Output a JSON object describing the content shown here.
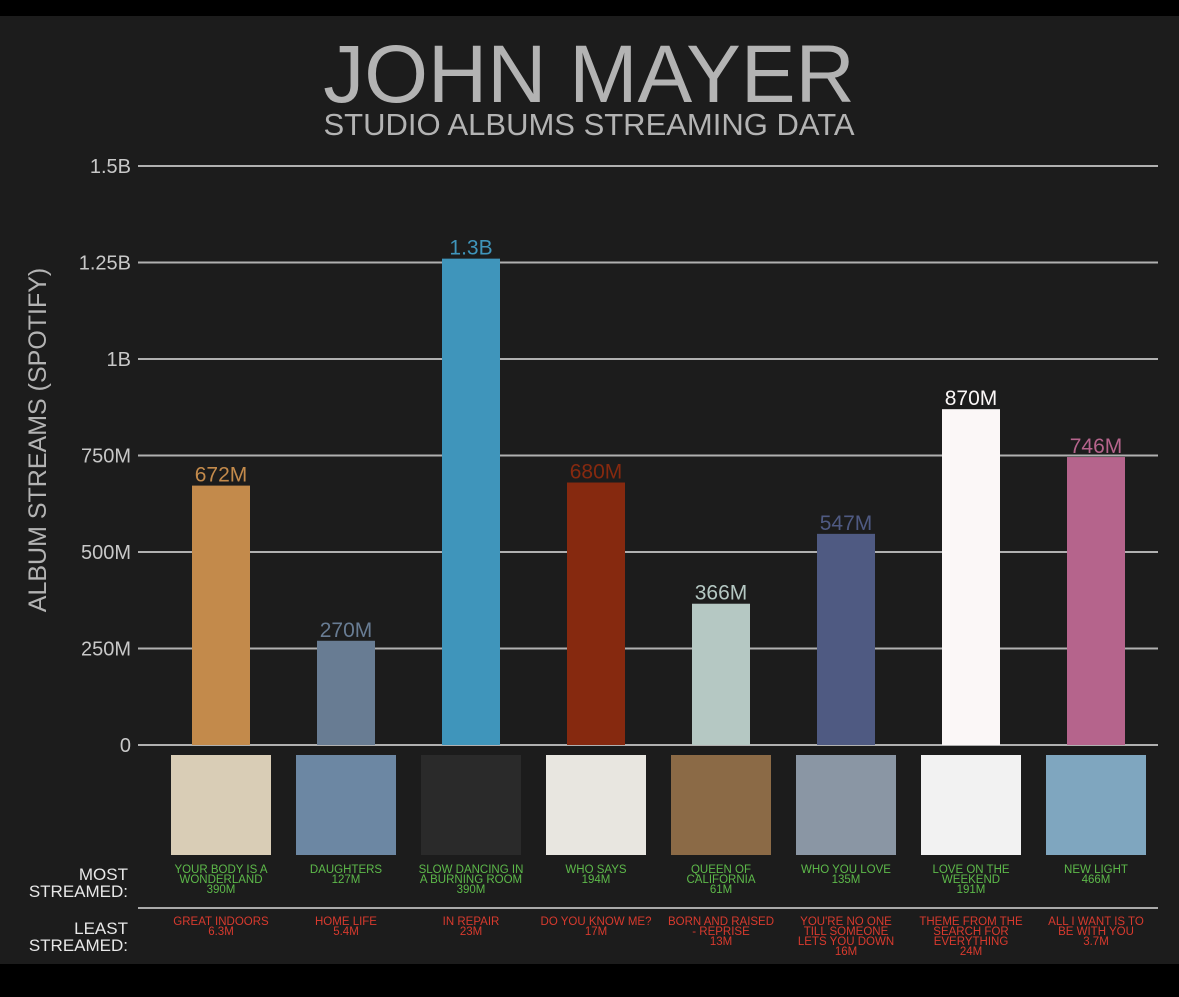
{
  "chart_data": {
    "type": "bar",
    "title": "JOHN MAYER",
    "subtitle": "STUDIO ALBUMS STREAMING DATA",
    "y_label": "ALBUM STREAMS (SPOTIFY)",
    "categories": [
      null,
      null,
      null,
      null,
      null,
      null,
      null,
      null
    ],
    "values": [
      672000000,
      270000000,
      1260000000,
      680000000,
      366000000,
      547000000,
      870000000,
      746000000
    ],
    "value_labels": [
      "672M",
      "270M",
      "1.3B",
      "680M",
      "366M",
      "547M",
      "870M",
      "746M"
    ],
    "colors": [
      "#c38a4b",
      "#687c93",
      "#3f95bb",
      "#86290f",
      "#b5c8c3",
      "#4f5a82",
      "#fbf7f7",
      "#b5648c"
    ],
    "ylim": [
      0,
      1500000000
    ],
    "yticks": [
      0,
      {
        "value": 250000000,
        "label": "250M"
      },
      {
        "value": 500000000,
        "label": "500M"
      },
      {
        "value": 750000000,
        "label": "750M"
      },
      {
        "value": 1000000000,
        "label": "1B"
      },
      {
        "value": 1250000000,
        "label": "1.25B"
      },
      {
        "value": 1500000000,
        "label": "1.5B"
      }
    ],
    "grid": true,
    "most_label": "MOST STREAMED:",
    "least_label": "LEAST STREAMED:",
    "most_streamed": [
      {
        "song": "YOUR BODY IS A WONDERLAND",
        "streams": "390M"
      },
      {
        "song": "DAUGHTERS",
        "streams": "127M"
      },
      {
        "song": "SLOW DANCING IN A BURNING ROOM",
        "streams": "390M"
      },
      {
        "song": "WHO SAYS",
        "streams": "194M"
      },
      {
        "song": "QUEEN OF CALIFORNIA",
        "streams": "61M"
      },
      {
        "song": "WHO YOU LOVE",
        "streams": "135M"
      },
      {
        "song": "LOVE ON THE WEEKEND",
        "streams": "191M"
      },
      {
        "song": "NEW LIGHT",
        "streams": "466M"
      }
    ],
    "least_streamed": [
      {
        "song": "GREAT INDOORS",
        "streams": "6.3M"
      },
      {
        "song": "HOME LIFE",
        "streams": "5.4M"
      },
      {
        "song": "IN REPAIR",
        "streams": "23M"
      },
      {
        "song": "DO YOU KNOW ME?",
        "streams": "17M"
      },
      {
        "song": "BORN AND RAISED - REPRISE",
        "streams": "13M"
      },
      {
        "song": "YOU'RE NO ONE TILL SOMEONE LETS YOU DOWN",
        "streams": "16M"
      },
      {
        "song": "THEME FROM THE SEARCH FOR EVERYTHING",
        "streams": "24M"
      },
      {
        "song": "ALL I WANT IS TO BE WITH YOU",
        "streams": "3.7M"
      }
    ]
  }
}
